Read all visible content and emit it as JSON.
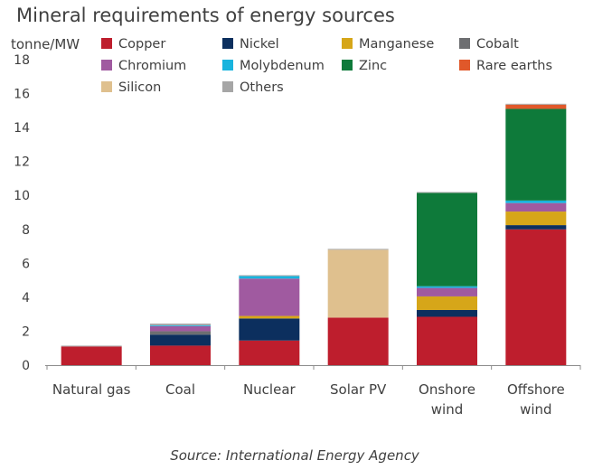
{
  "chart_data": {
    "type": "bar",
    "stacked": true,
    "title": "Mineral requirements of energy sources",
    "ylabel": "tonne/MW",
    "xlabel": "",
    "ylim": [
      0,
      18
    ],
    "yticks": [
      0,
      2,
      4,
      6,
      8,
      10,
      12,
      14,
      16,
      18
    ],
    "grid": false,
    "legend_position": "top",
    "categories": [
      "Natural gas",
      "Coal",
      "Nuclear",
      "Solar PV",
      "Onshore wind",
      "Offshore wind"
    ],
    "category_lines": [
      [
        "Natural gas"
      ],
      [
        "Coal"
      ],
      [
        "Nuclear"
      ],
      [
        "Solar PV"
      ],
      [
        "Onshore",
        "wind"
      ],
      [
        "Offshore",
        "wind"
      ]
    ],
    "series": [
      {
        "name": "Copper",
        "color": "#BE1E2D",
        "values": [
          1.1,
          1.15,
          1.45,
          2.8,
          2.85,
          8.0
        ]
      },
      {
        "name": "Nickel",
        "color": "#0C2F5E",
        "values": [
          0,
          0.65,
          1.3,
          0,
          0.4,
          0.25
        ]
      },
      {
        "name": "Manganese",
        "color": "#D6A619",
        "values": [
          0,
          0,
          0.15,
          0,
          0.8,
          0.8
        ]
      },
      {
        "name": "Cobalt",
        "color": "#6D6E71",
        "values": [
          0,
          0.2,
          0,
          0,
          0,
          0
        ]
      },
      {
        "name": "Chromium",
        "color": "#A05AA0",
        "values": [
          0,
          0.3,
          2.2,
          0,
          0.5,
          0.5
        ]
      },
      {
        "name": "Molybdenum",
        "color": "#18B4DE",
        "values": [
          0,
          0.05,
          0.15,
          0,
          0.1,
          0.15
        ]
      },
      {
        "name": "Zinc",
        "color": "#0E7A3A",
        "values": [
          0,
          0,
          0,
          0,
          5.5,
          5.4
        ]
      },
      {
        "name": "Rare earths",
        "color": "#E0582A",
        "values": [
          0,
          0,
          0,
          0,
          0,
          0.25
        ]
      },
      {
        "name": "Silicon",
        "color": "#DFC08E",
        "values": [
          0,
          0,
          0,
          4.0,
          0,
          0
        ]
      },
      {
        "name": "Others",
        "color": "#A6A6A6",
        "values": [
          0.05,
          0.1,
          0.05,
          0.05,
          0.05,
          0.05
        ]
      }
    ]
  },
  "source": "Source: International Energy Agency"
}
